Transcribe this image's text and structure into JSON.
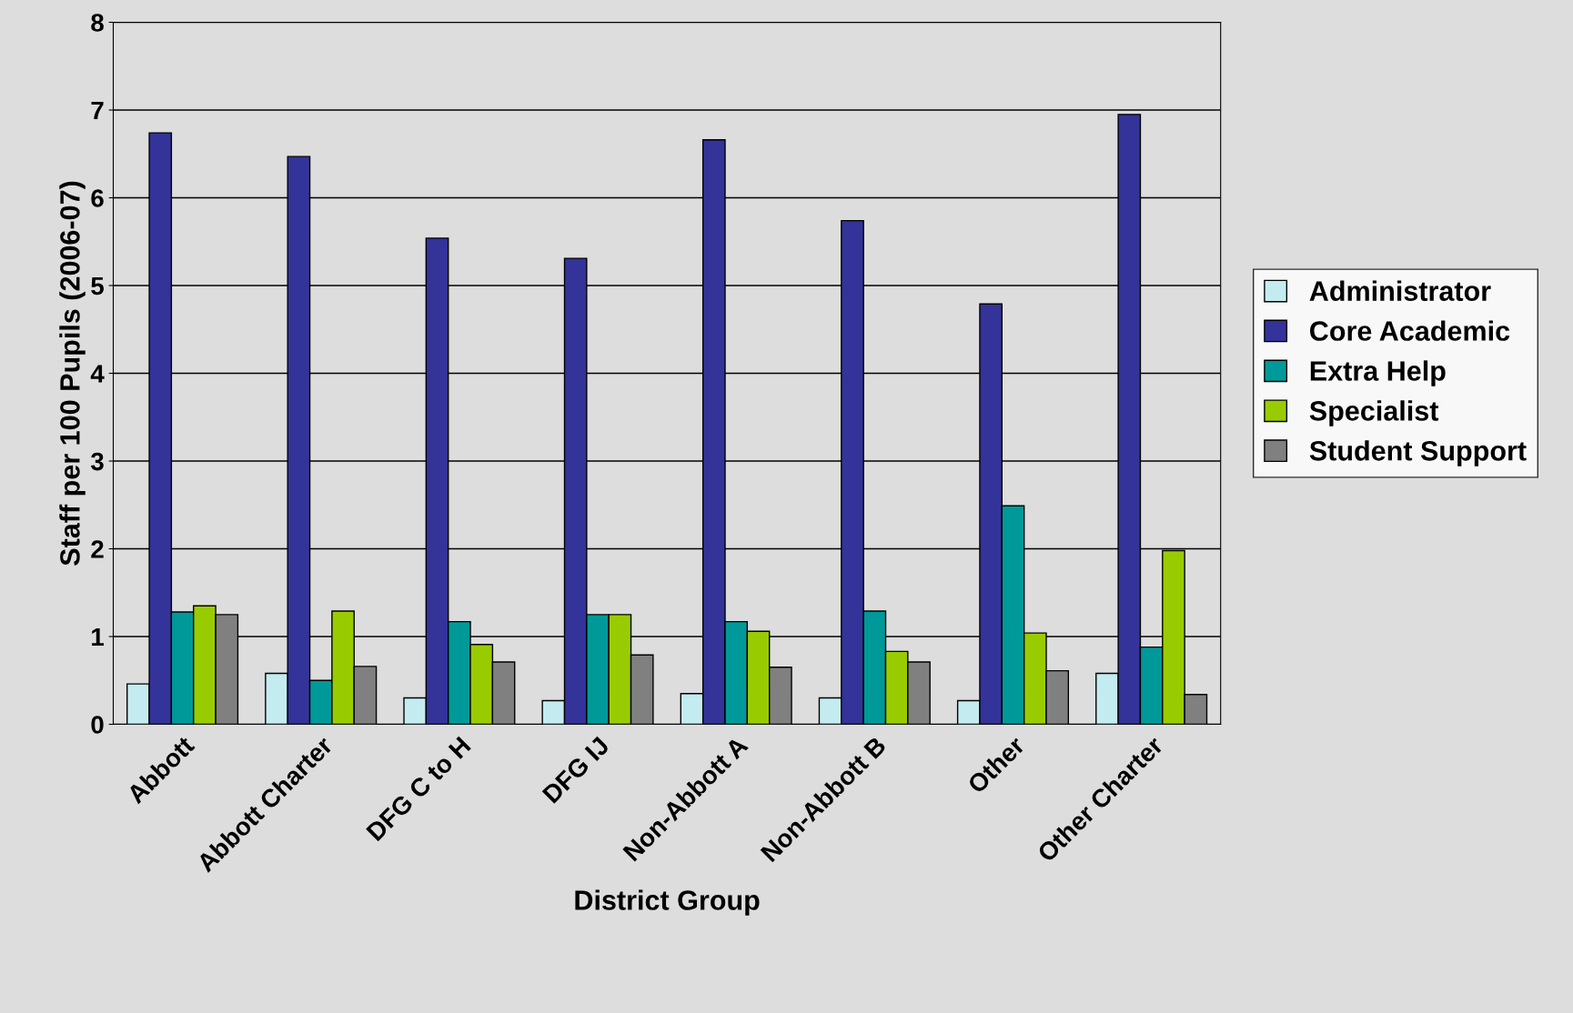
{
  "chart_data": {
    "type": "bar",
    "xlabel": "District Group",
    "ylabel": "Staff per 100 Pupils (2006-07)",
    "categories": [
      "Abbott",
      "Abbott Charter",
      "DFG C to H",
      "DFG IJ",
      "Non-Abbott A",
      "Non-Abbott B",
      "Other",
      "Other Charter"
    ],
    "series": [
      {
        "name": "Administrator",
        "color": "#c4ecf0",
        "values": [
          0.46,
          0.58,
          0.3,
          0.27,
          0.35,
          0.3,
          0.27,
          0.58
        ]
      },
      {
        "name": "Core Academic",
        "color": "#333399",
        "values": [
          6.74,
          6.47,
          5.54,
          5.31,
          6.66,
          5.74,
          4.79,
          6.95
        ]
      },
      {
        "name": "Extra Help",
        "color": "#009999",
        "values": [
          1.28,
          0.5,
          1.17,
          1.25,
          1.17,
          1.29,
          2.49,
          0.88
        ]
      },
      {
        "name": "Specialist",
        "color": "#99cc00",
        "values": [
          1.35,
          1.29,
          0.91,
          1.25,
          1.06,
          0.83,
          1.04,
          1.98
        ]
      },
      {
        "name": "Student Support",
        "color": "#808080",
        "values": [
          1.25,
          0.66,
          0.71,
          0.79,
          0.65,
          0.71,
          0.61,
          0.34
        ]
      }
    ],
    "ylim": [
      0,
      8
    ],
    "yticks": [
      0,
      1,
      2,
      3,
      4,
      5,
      6,
      7,
      8
    ],
    "grid": "y",
    "legend": "right"
  }
}
